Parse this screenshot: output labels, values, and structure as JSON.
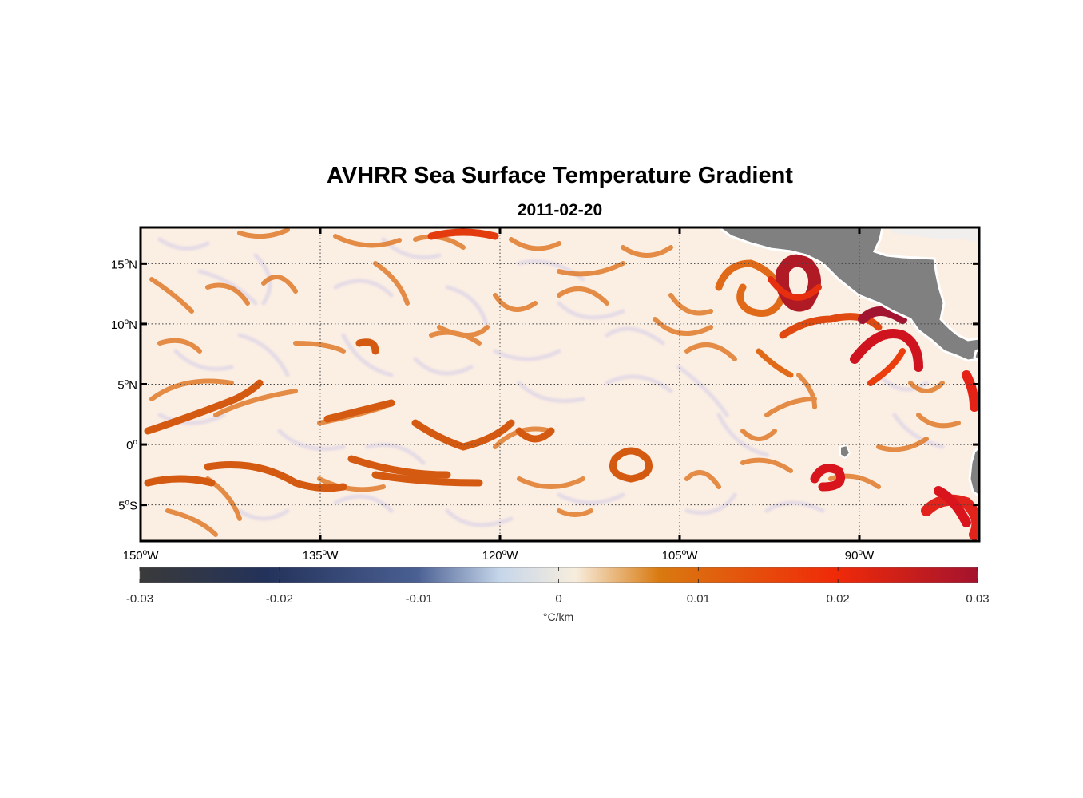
{
  "title": "AVHRR Sea Surface Temperature Gradient",
  "subtitle": "2011-02-20",
  "map": {
    "lon_range": [
      -150,
      -80
    ],
    "lat_range": [
      -8,
      18
    ],
    "lat_ticks": [
      {
        "value": 15,
        "num": "15",
        "hemi": "N"
      },
      {
        "value": 10,
        "num": "10",
        "hemi": "N"
      },
      {
        "value": 5,
        "num": "5",
        "hemi": "N"
      },
      {
        "value": 0,
        "num": "0",
        "hemi": ""
      },
      {
        "value": -5,
        "num": "5",
        "hemi": "S"
      }
    ],
    "lon_ticks": [
      {
        "value": -150,
        "num": "150",
        "hemi": "W"
      },
      {
        "value": -135,
        "num": "135",
        "hemi": "W"
      },
      {
        "value": -120,
        "num": "120",
        "hemi": "W"
      },
      {
        "value": -105,
        "num": "105",
        "hemi": "W"
      },
      {
        "value": -90,
        "num": "90",
        "hemi": "W"
      }
    ],
    "degree_symbol": "o",
    "grid": "dotted",
    "land_color": "#808080",
    "ocean_base_color": "#fbeee3"
  },
  "colorbar": {
    "min": -0.03,
    "max": 0.03,
    "tick_labels": [
      "-0.03",
      "-0.02",
      "-0.01",
      "0",
      "0.01",
      "0.02",
      "0.03"
    ],
    "tick_values": [
      -0.03,
      -0.02,
      -0.01,
      0,
      0.01,
      0.02,
      0.03
    ],
    "units": "°C/km",
    "colors": [
      "#3a3a3a",
      "#23325a",
      "#4a5f92",
      "#c6d6ea",
      "#f7eddd",
      "#d97a10",
      "#f02a08",
      "#a4132e"
    ]
  }
}
